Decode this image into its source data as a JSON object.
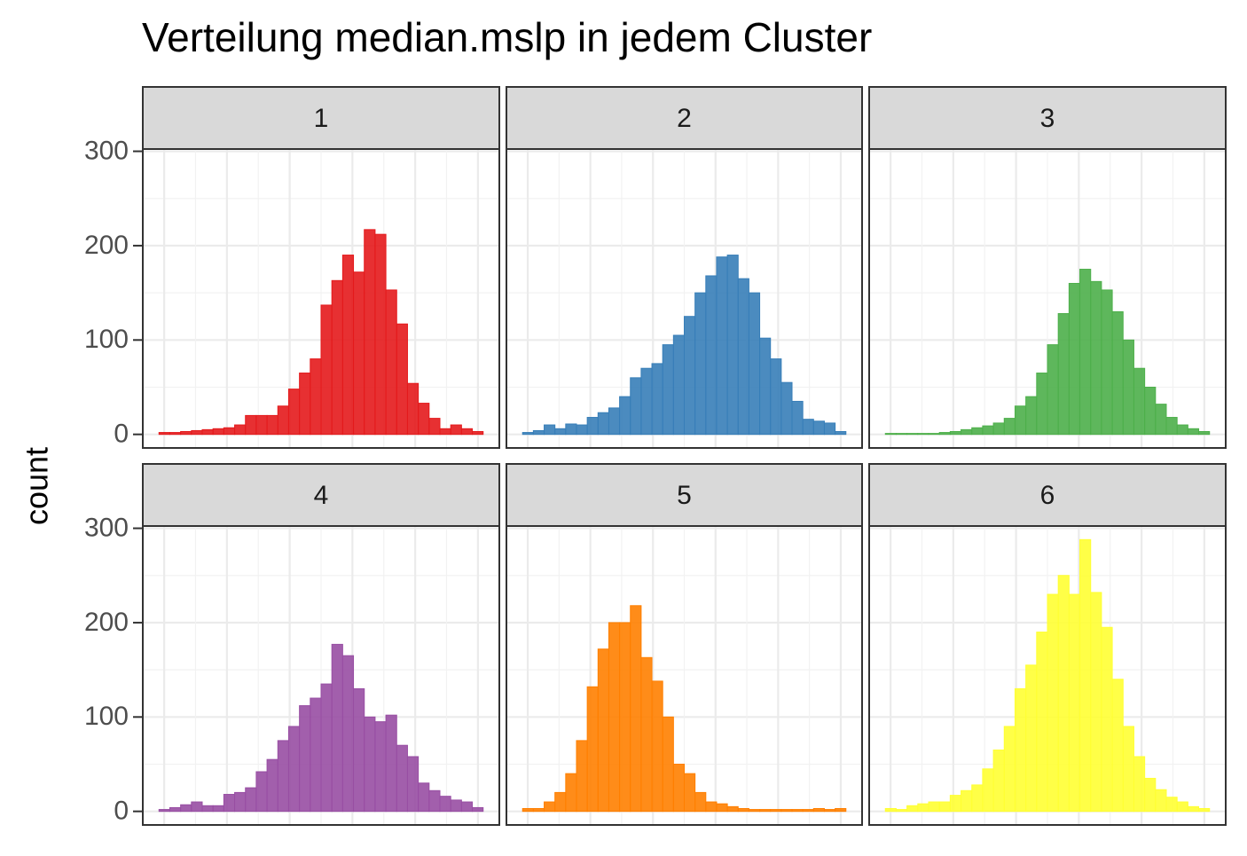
{
  "chart_data": {
    "type": "histogram",
    "title": "Verteilung median.mslp in jedem Cluster",
    "ylabel": "count",
    "ylim": [
      -14.4,
      302.4
    ],
    "yticks": [
      0,
      100,
      200,
      300
    ],
    "grid": true,
    "panels": [
      {
        "label": "1",
        "color": "#E41A1C",
        "values": [
          2,
          2,
          3,
          4,
          5,
          6,
          7,
          10,
          20,
          20,
          20,
          30,
          48,
          65,
          80,
          137,
          163,
          190,
          172,
          217,
          212,
          153,
          117,
          54,
          33,
          17,
          6,
          10,
          6,
          3
        ]
      },
      {
        "label": "2",
        "color": "#377EB8",
        "values": [
          2,
          4,
          10,
          6,
          11,
          10,
          18,
          23,
          28,
          40,
          60,
          70,
          75,
          95,
          105,
          125,
          150,
          168,
          188,
          190,
          165,
          150,
          102,
          80,
          55,
          35,
          16,
          14,
          12,
          3
        ]
      },
      {
        "label": "3",
        "color": "#4DAF4A",
        "values": [
          1,
          1,
          1,
          1,
          1,
          2,
          3,
          5,
          7,
          9,
          12,
          17,
          30,
          40,
          65,
          95,
          128,
          160,
          175,
          162,
          153,
          130,
          100,
          70,
          50,
          32,
          18,
          10,
          6,
          3
        ]
      },
      {
        "label": "4",
        "color": "#984EA3",
        "values": [
          2,
          4,
          7,
          10,
          6,
          6,
          18,
          20,
          25,
          42,
          55,
          75,
          90,
          112,
          120,
          135,
          177,
          165,
          130,
          100,
          95,
          102,
          70,
          58,
          30,
          22,
          16,
          12,
          10,
          4
        ]
      },
      {
        "label": "5",
        "color": "#FF7F00",
        "values": [
          3,
          3,
          10,
          20,
          40,
          75,
          132,
          172,
          200,
          200,
          218,
          163,
          138,
          100,
          50,
          40,
          20,
          10,
          8,
          5,
          3,
          2,
          2,
          2,
          2,
          2,
          2,
          3,
          2,
          3
        ]
      },
      {
        "label": "6",
        "color": "#FFFF33",
        "values": [
          3,
          2,
          6,
          8,
          10,
          10,
          17,
          22,
          28,
          45,
          65,
          90,
          130,
          155,
          190,
          230,
          250,
          230,
          288,
          232,
          195,
          140,
          90,
          58,
          35,
          23,
          15,
          10,
          5,
          3
        ]
      }
    ]
  }
}
